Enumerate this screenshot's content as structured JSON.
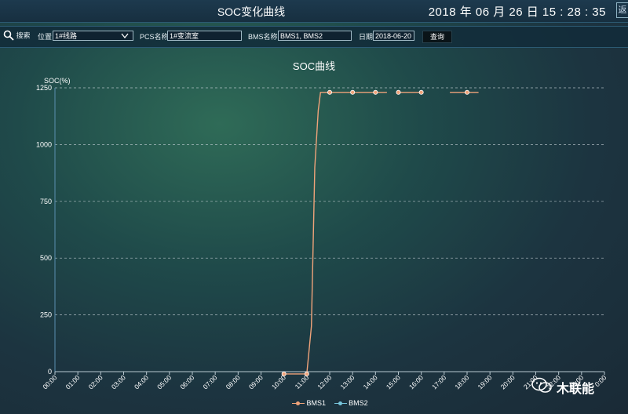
{
  "header": {
    "title": "SOC变化曲线",
    "datetime": "2018 年 06 月 26 日  15 : 28 : 35",
    "corner_tab": "返"
  },
  "filters": {
    "search_label": "搜索",
    "location_label": "位置",
    "location_value": "1#线路",
    "pcs_label": "PCS名称",
    "pcs_value": "1#变流室",
    "bms_label": "BMS名称",
    "bms_value": "BMS1, BMS2",
    "date_label": "日期",
    "date_value": "2018-06-20",
    "query_button": "查询"
  },
  "watermark": {
    "text": "木联能"
  },
  "colors": {
    "bms1": "#f0a37a",
    "bms2": "#78c6dc",
    "grid": "#c8d2d8"
  },
  "chart_data": {
    "type": "line",
    "title": "SOC曲线",
    "ylabel": "SOC(%)",
    "xlabel": "",
    "ylim": [
      0,
      1250
    ],
    "yticks": [
      0,
      250,
      500,
      750,
      1000,
      1250
    ],
    "grid": true,
    "legend_position": "bottom",
    "categories": [
      "00:00",
      "01:00",
      "02:00",
      "03:00",
      "04:00",
      "05:00",
      "06:00",
      "07:00",
      "08:00",
      "09:00",
      "10:00",
      "11:00",
      "12:00",
      "13:00",
      "14:00",
      "15:00",
      "16:00",
      "17:00",
      "18:00",
      "19:00",
      "20:00",
      "21:00",
      "22:00",
      "23:00",
      "0:00"
    ],
    "series": [
      {
        "name": "BMS1",
        "segments": [
          [
            [
              10.0,
              -10
            ],
            [
              11.0,
              -10
            ],
            [
              11.2,
              200
            ],
            [
              11.35,
              900
            ],
            [
              11.5,
              1150
            ],
            [
              11.6,
              1230
            ],
            [
              12.0,
              1230
            ],
            [
              13.0,
              1230
            ],
            [
              14.0,
              1230
            ],
            [
              14.5,
              1230
            ]
          ],
          [
            [
              14.95,
              1230
            ],
            [
              15.0,
              1230
            ],
            [
              16.0,
              1230
            ]
          ],
          [
            [
              17.25,
              1230
            ],
            [
              18.0,
              1230
            ],
            [
              18.5,
              1230
            ]
          ]
        ],
        "markers": [
          [
            10.0,
            -10
          ],
          [
            11.0,
            -10
          ],
          [
            12.0,
            1230
          ],
          [
            13.0,
            1230
          ],
          [
            14.0,
            1230
          ],
          [
            15.0,
            1230
          ],
          [
            16.0,
            1230
          ],
          [
            18.0,
            1230
          ]
        ]
      },
      {
        "name": "BMS2",
        "segments": [],
        "markers": []
      }
    ]
  }
}
